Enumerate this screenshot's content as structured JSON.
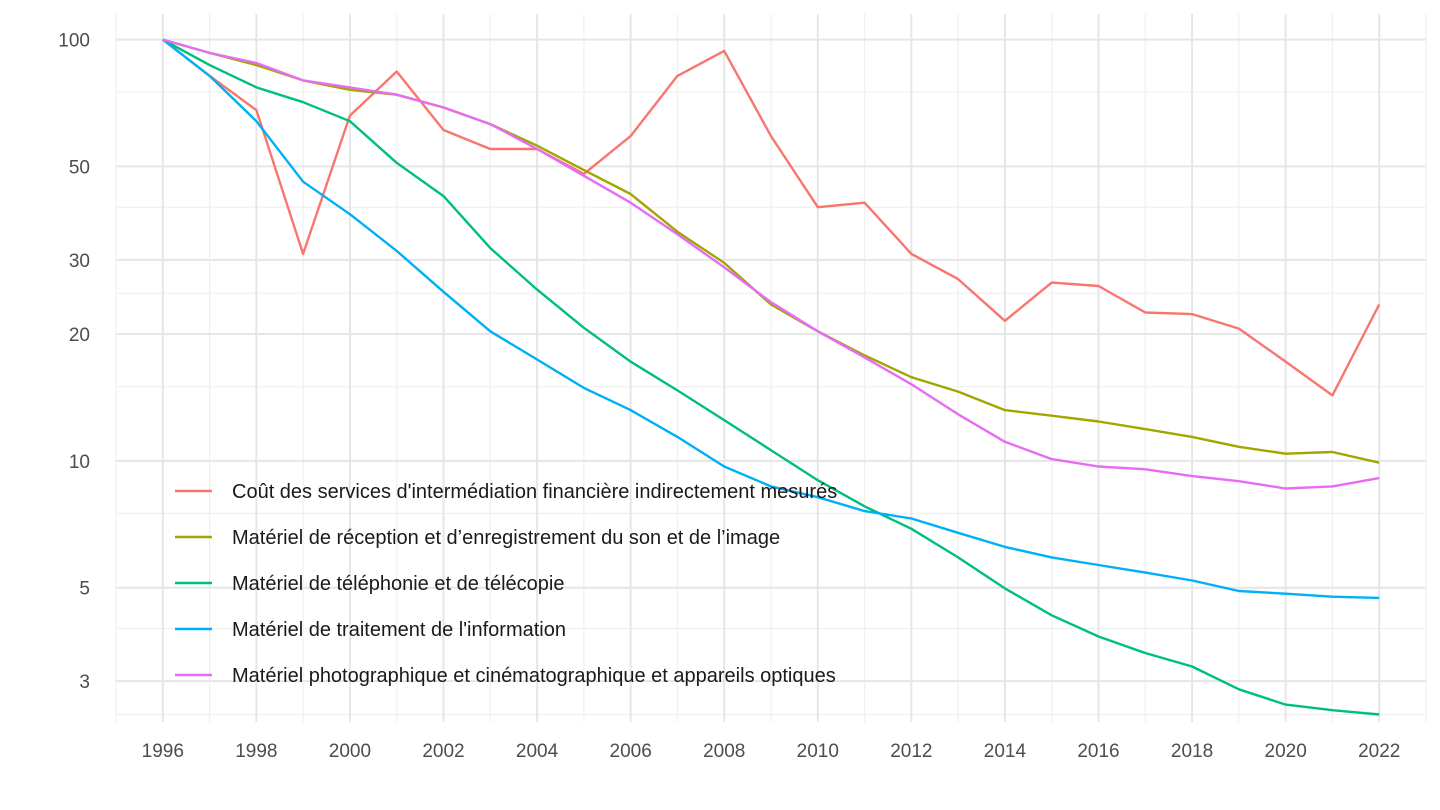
{
  "chart_data": {
    "type": "line",
    "title": "",
    "xlabel": "",
    "ylabel": "",
    "yscale": "log",
    "xlim": [
      1995,
      2023
    ],
    "ylim": [
      2.4,
      115
    ],
    "grid": true,
    "legend_position": "bottom-left inside",
    "x": [
      1996,
      1997,
      1998,
      1999,
      2000,
      2001,
      2002,
      2003,
      2004,
      2005,
      2006,
      2007,
      2008,
      2009,
      2010,
      2011,
      2012,
      2013,
      2014,
      2015,
      2016,
      2017,
      2018,
      2019,
      2020,
      2021,
      2022
    ],
    "x_ticks": [
      1996,
      1998,
      2000,
      2002,
      2004,
      2006,
      2008,
      2010,
      2012,
      2014,
      2016,
      2018,
      2020,
      2022
    ],
    "x_tick_labels": [
      "1996",
      "1998",
      "2000",
      "2002",
      "2004",
      "2006",
      "2008",
      "2010",
      "2012",
      "2014",
      "2016",
      "2018",
      "2020",
      "2022"
    ],
    "y_ticks": [
      100,
      50,
      30,
      20,
      10,
      5,
      3
    ],
    "y_tick_labels": [
      "100",
      "50",
      "30",
      "20",
      "10",
      "5",
      "3"
    ],
    "y_minor_ticks": [
      75,
      40,
      25,
      15,
      7.5,
      4,
      2.5
    ],
    "series": [
      {
        "name": "Coût des services d'intermédiation financière indirectement mesurés",
        "color": "#F8766D",
        "values": [
          100,
          82,
          68,
          31,
          66,
          84,
          61,
          55,
          55,
          48,
          59,
          82,
          94,
          59,
          40,
          41,
          31,
          27,
          21.5,
          26.5,
          26,
          22.5,
          22.3,
          20.6,
          17.2,
          14.3,
          23.5
        ]
      },
      {
        "name": "Matériel de réception et d’enregistrement du son et de l’image",
        "color": "#A3A500",
        "values": [
          100,
          93,
          87,
          80,
          76,
          74,
          69,
          63,
          56,
          49,
          43,
          35,
          29.5,
          23.5,
          20.3,
          17.8,
          15.8,
          14.6,
          13.2,
          12.8,
          12.4,
          11.9,
          11.4,
          10.8,
          10.4,
          10.5,
          9.9
        ]
      },
      {
        "name": "Matériel de téléphonie et de télécopie",
        "color": "#00BF7D",
        "values": [
          100,
          87,
          77,
          71,
          64,
          51,
          42.5,
          32,
          25.5,
          20.7,
          17.2,
          14.7,
          12.5,
          10.6,
          9.0,
          7.8,
          6.9,
          5.9,
          4.98,
          4.3,
          3.83,
          3.5,
          3.25,
          2.87,
          2.64,
          2.56,
          2.5
        ]
      },
      {
        "name": "Matériel de traitement de l'information",
        "color": "#00B0F6",
        "values": [
          100,
          82,
          64,
          46,
          38.5,
          31.5,
          25.2,
          20.3,
          17.4,
          14.9,
          13.2,
          11.4,
          9.7,
          8.7,
          8.2,
          7.6,
          7.3,
          6.75,
          6.25,
          5.9,
          5.66,
          5.43,
          5.2,
          4.91,
          4.84,
          4.76,
          4.73
        ]
      },
      {
        "name": "Matériel photographique et cinématographique et appareils optiques",
        "color": "#E76BF3",
        "values": [
          100,
          93,
          88,
          80,
          77,
          74,
          69,
          63,
          55,
          47.5,
          41,
          34.5,
          28.8,
          23.8,
          20.3,
          17.6,
          15.2,
          12.9,
          11.1,
          10.1,
          9.7,
          9.55,
          9.2,
          8.95,
          8.6,
          8.7,
          9.1
        ]
      }
    ]
  }
}
